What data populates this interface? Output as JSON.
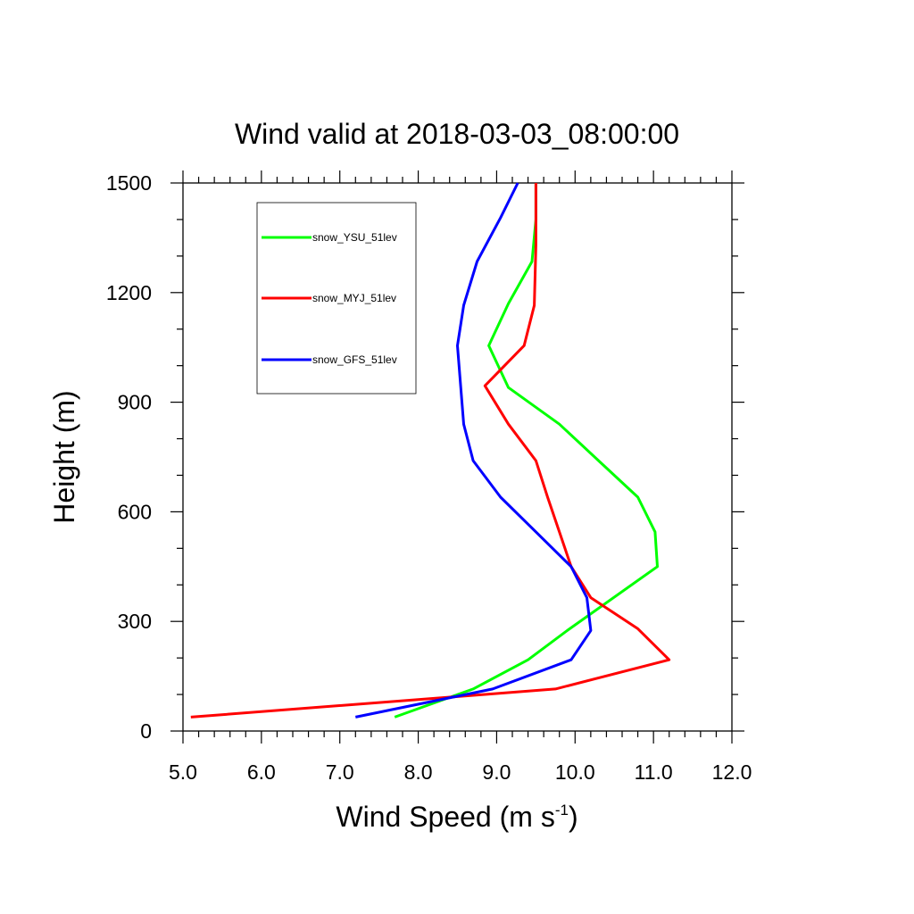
{
  "chart_data": {
    "type": "line",
    "title": "Wind valid at 2018-03-03_08:00:00",
    "xlabel_main": "Wind Speed (m s",
    "xlabel_sup": "-1",
    "xlabel_end": ")",
    "ylabel": "Height (m)",
    "xlim": [
      5.0,
      12.0
    ],
    "ylim": [
      0,
      1500
    ],
    "xticks": [
      "5.0",
      "6.0",
      "7.0",
      "8.0",
      "9.0",
      "10.0",
      "11.0",
      "12.0"
    ],
    "yticks": [
      "0",
      "300",
      "600",
      "900",
      "1200",
      "1500"
    ],
    "legend_placement": "top-left",
    "grid": false,
    "series": [
      {
        "name": "snow_YSU_51lev",
        "color": "#00ff00",
        "x": [
          7.7,
          8.7,
          9.4,
          9.9,
          11.05,
          11.02,
          10.8,
          10.3,
          9.8,
          9.15,
          8.9,
          9.15,
          9.45,
          9.5,
          9.5
        ],
        "y": [
          38,
          115,
          195,
          275,
          450,
          545,
          640,
          740,
          840,
          940,
          1055,
          1170,
          1285,
          1400,
          1500
        ]
      },
      {
        "name": "snow_MYJ_51lev",
        "color": "#ff0000",
        "x": [
          5.1,
          9.75,
          11.2,
          10.8,
          10.2,
          9.95,
          9.8,
          9.65,
          9.5,
          9.15,
          8.85,
          9.35,
          9.48,
          9.5,
          9.5
        ],
        "y": [
          38,
          115,
          195,
          280,
          365,
          450,
          545,
          640,
          740,
          840,
          945,
          1055,
          1165,
          1330,
          1500
        ]
      },
      {
        "name": "snow_GFS_51lev",
        "color": "#0000ff",
        "x": [
          7.2,
          8.95,
          9.95,
          10.2,
          10.15,
          9.95,
          9.5,
          9.05,
          8.7,
          8.58,
          8.5,
          8.58,
          8.75,
          9.05,
          9.27
        ],
        "y": [
          38,
          115,
          195,
          275,
          365,
          450,
          545,
          640,
          740,
          840,
          1055,
          1165,
          1285,
          1405,
          1500
        ]
      }
    ]
  }
}
